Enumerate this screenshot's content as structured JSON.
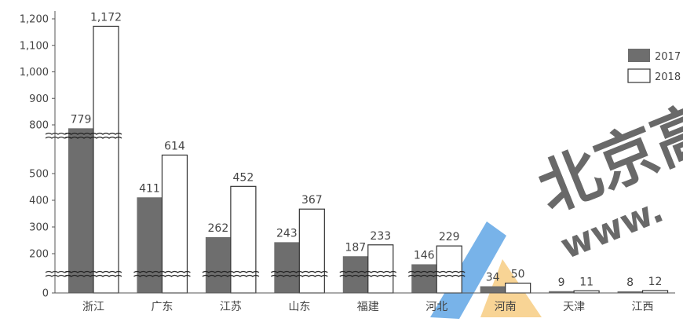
{
  "chart_data": {
    "type": "bar",
    "categories": [
      "浙江",
      "广东",
      "江苏",
      "山东",
      "福建",
      "河北",
      "河南",
      "天津",
      "江西"
    ],
    "series": [
      {
        "name": "2017",
        "values": [
          779,
          411,
          262,
          243,
          187,
          146,
          34,
          9,
          8
        ],
        "color": "#6e6e6e"
      },
      {
        "name": "2018",
        "values": [
          1172,
          614,
          452,
          367,
          233,
          229,
          50,
          11,
          12
        ],
        "color": "#ffffff"
      }
    ],
    "value_labels": {
      "2017": [
        "779",
        "411",
        "262",
        "243",
        "187",
        "146",
        "34",
        "9",
        "8"
      ],
      "2018": [
        "1,172",
        "614",
        "452",
        "367",
        "233",
        "229",
        "50",
        "11",
        "12"
      ]
    },
    "y_ticks": [
      {
        "value": 0,
        "label": "0"
      },
      {
        "value": 200,
        "label": "200"
      },
      {
        "value": 300,
        "label": "300"
      },
      {
        "value": 400,
        "label": "400"
      },
      {
        "value": 500,
        "label": "500"
      },
      {
        "value": 800,
        "label": "800"
      },
      {
        "value": 900,
        "label": "900"
      },
      {
        "value": 1000,
        "label": "1,000"
      },
      {
        "value": 1100,
        "label": "1,100"
      },
      {
        "value": 1200,
        "label": "1,200"
      }
    ],
    "axis_breaks": [
      "between 0 and 200",
      "between 500 and 800"
    ],
    "ylim": [
      0,
      1200
    ],
    "legend_position": "right",
    "grid": false,
    "watermark_text": "北京高 www."
  }
}
